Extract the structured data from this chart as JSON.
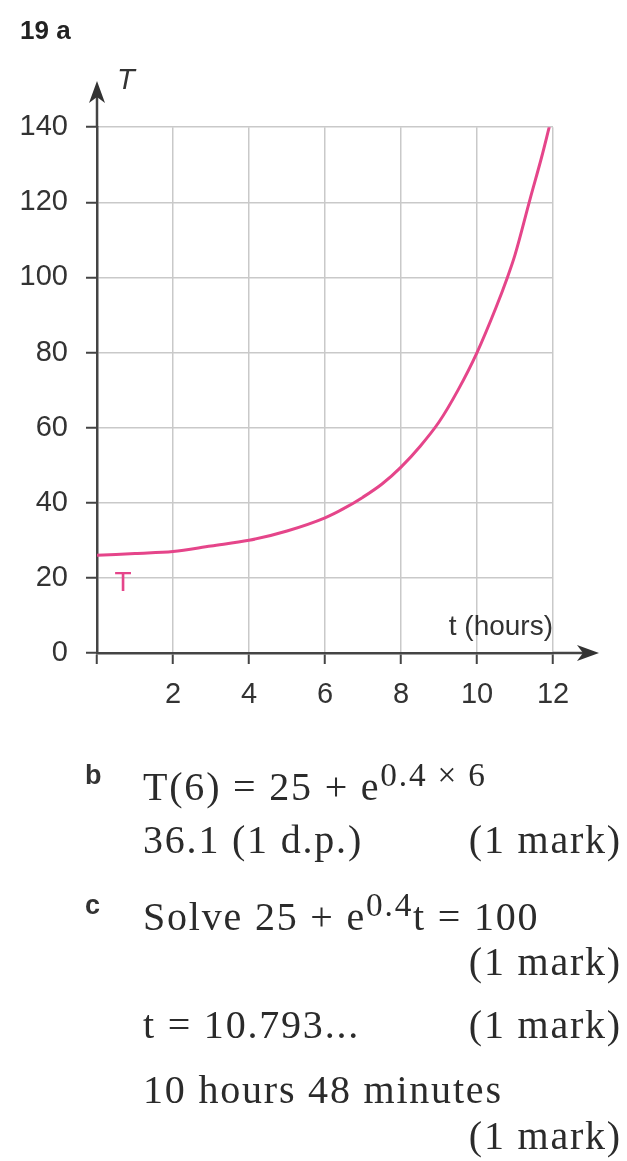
{
  "chart_data": {
    "type": "line",
    "title": "19 a",
    "xlabel": "t (hours)",
    "ylabel": "T",
    "x": [
      0,
      1,
      2,
      3,
      4,
      5,
      6,
      6.5,
      7,
      7.5,
      8,
      8.5,
      9,
      9.5,
      10,
      10.5,
      10.8,
      11,
      11.4,
      11.7,
      11.9
    ],
    "series": [
      {
        "name": "T",
        "color": "#e5458a",
        "values": [
          26,
          26.5,
          27,
          28.5,
          30,
          32.5,
          36,
          38.5,
          41.5,
          45,
          49.5,
          55,
          61.5,
          70,
          80,
          92,
          100,
          106,
          121,
          132,
          140
        ]
      }
    ],
    "xlim": [
      0,
      12
    ],
    "ylim": [
      0,
      140
    ],
    "xticks": [
      {
        "value": 0,
        "label": null
      },
      2,
      4,
      6,
      8,
      10,
      12
    ],
    "yticks": [
      0,
      20,
      40,
      60,
      80,
      100,
      120,
      140
    ],
    "grid": true,
    "marker": "none",
    "line_style": "solid",
    "annotations": [
      "b",
      "T(6) = 25 + e$^{0.4 × 6}$",
      "36.1 (1 d.p.)",
      "(1 mark)",
      "c",
      "Solve 25 + e$^{0.4}$t = 100",
      "(1 mark)",
      "t = 10.793...",
      "(1 mark)",
      "10 hours 48 minutes",
      "(1 mark)"
    ]
  }
}
